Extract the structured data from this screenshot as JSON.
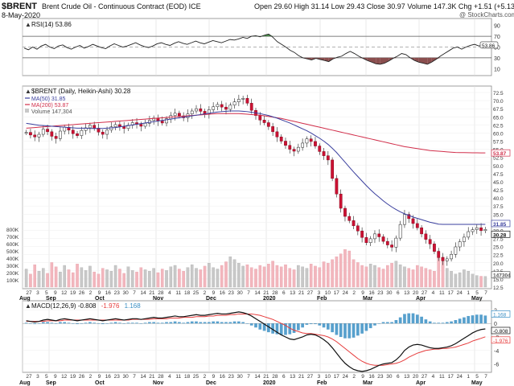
{
  "header": {
    "symbol": "$BRENT",
    "name": "Brent Crude Oil - Continuous Contract (EOD)",
    "exchange": "ICE",
    "date": "8-May-2020",
    "open_label": "Open",
    "open": "29.60",
    "high_label": "High",
    "high": "31.14",
    "low_label": "Low",
    "low": "29.43",
    "close_label": "Close",
    "close": "30.97",
    "volume_label": "Volume",
    "volume": "147.3K",
    "chg_label": "Chg",
    "chg": "+1.51 (+5.13%)",
    "chg_arrow": "▲",
    "copyright": "@ StockCharts.com"
  },
  "rsi": {
    "legend": "RSI(14) 53.86",
    "value_tag": "53.86",
    "ticks": [
      "90",
      "70",
      "50",
      "30",
      "10"
    ]
  },
  "price": {
    "legend_title": "$BRENT (Daily, Heikin-Ashi) 30.28",
    "legend_ma50": "MA(50) 31.85",
    "legend_ma200": "MA(200) 53.87",
    "legend_volume": "Volume 147,304",
    "tag_ma200": "53.87",
    "tag_ma50": "31.85",
    "tag_close": "30.28",
    "tag_volume": "147304",
    "ticks": [
      "72.5",
      "70.0",
      "67.5",
      "65.0",
      "62.5",
      "60.0",
      "57.5",
      "55.0",
      "52.5",
      "50.0",
      "47.5",
      "45.0",
      "42.5",
      "40.0",
      "37.5",
      "35.0",
      "32.5",
      "30.0",
      "27.5",
      "25.0",
      "22.5",
      "20.0",
      "17.5",
      "15.0",
      "12.5"
    ],
    "volume_ticks": [
      "800K",
      "700K",
      "600K",
      "500K",
      "400K",
      "300K",
      "200K",
      "100K"
    ]
  },
  "macd": {
    "legend_prefix": "MACD(12,26,9)",
    "legend_macd": "-0.808",
    "legend_signal": "-1.976",
    "legend_hist": "1.168",
    "tag_hist": "1.168",
    "tag_macd": "-0.808",
    "tag_signal": "-1.976",
    "ticks": [
      "2",
      "0",
      "-2",
      "-4",
      "-6"
    ]
  },
  "axis": {
    "days_top": [
      "27",
      "3",
      "5",
      "9",
      "12",
      "19",
      "26",
      "2",
      "9",
      "16",
      "23",
      "30",
      "7",
      "14",
      "21",
      "28",
      "4",
      "11",
      "18",
      "25",
      "2",
      "9",
      "16",
      "23",
      "30",
      "7",
      "14",
      "21",
      "28",
      "6",
      "13",
      "21",
      "27",
      "3",
      "10",
      "17",
      "24",
      "2",
      "9",
      "16",
      "23",
      "30",
      "6",
      "13",
      "20",
      "27",
      "4",
      "11",
      "17",
      "24",
      "1",
      "5",
      "7"
    ],
    "days_bottom": [
      "27",
      "3",
      "5",
      "9",
      "12",
      "19",
      "26",
      "2",
      "9",
      "16",
      "23",
      "30",
      "7",
      "14",
      "21",
      "28",
      "4",
      "11",
      "18",
      "25",
      "2",
      "9",
      "16",
      "23",
      "30",
      "7",
      "14",
      "21",
      "28",
      "6",
      "13",
      "21",
      "27",
      "3",
      "10",
      "17",
      "24",
      "2",
      "9",
      "16",
      "23",
      "30",
      "6",
      "13",
      "20",
      "27",
      "4",
      "11",
      "17",
      "24",
      "1",
      "5",
      "7"
    ],
    "months": [
      {
        "label": "Aug",
        "x": 24
      },
      {
        "label": "Sep",
        "x": 57
      },
      {
        "label": "Oct",
        "x": 118
      },
      {
        "label": "Nov",
        "x": 190
      },
      {
        "label": "Dec",
        "x": 256
      },
      {
        "label": "2020",
        "x": 327
      },
      {
        "label": "Feb",
        "x": 394
      },
      {
        "label": "Mar",
        "x": 451
      },
      {
        "label": "Apr",
        "x": 517
      },
      {
        "label": "May",
        "x": 586
      }
    ]
  },
  "colors": {
    "up": "#ffffff",
    "down": "#cc1133",
    "ma50": "#3a3f9e",
    "ma200": "#d12e4a",
    "vol_up": "#c8c8c8",
    "vol_down": "#f2b6bd",
    "rsi_line": "#222222",
    "rsi_fill_low": "#8a4e4e",
    "rsi_fill_high": "#4b8a4b",
    "macd_line": "#111111",
    "signal_line": "#e63c3c",
    "hist": "#3a8fc4"
  },
  "chart_data": [
    {
      "type": "line",
      "name": "RSI(14)",
      "ylim": [
        0,
        100
      ],
      "guides": [
        70,
        50,
        30
      ],
      "values": [
        48,
        45,
        50,
        46,
        52,
        55,
        50,
        47,
        52,
        54,
        49,
        46,
        50,
        53,
        48,
        51,
        55,
        52,
        49,
        47,
        52,
        56,
        53,
        50,
        52,
        55,
        58,
        54,
        51,
        49,
        52,
        56,
        58,
        55,
        53,
        57,
        60,
        57,
        55,
        58,
        61,
        58,
        56,
        59,
        62,
        60,
        58,
        61,
        64,
        63,
        65,
        68,
        66,
        70,
        71,
        69,
        72,
        74,
        68,
        60,
        55,
        50,
        44,
        40,
        34,
        30,
        28,
        26,
        29,
        27,
        25,
        23,
        28,
        31,
        33,
        38,
        42,
        38,
        33,
        29,
        25,
        22,
        19,
        18,
        20,
        24,
        29,
        33,
        38,
        36,
        30,
        25,
        22,
        20,
        18,
        22,
        27,
        33,
        38,
        43,
        48,
        50,
        46,
        50,
        53,
        55,
        52,
        54,
        53.86
      ],
      "last": 53.86
    },
    {
      "type": "candlestick",
      "name": "$BRENT (Daily, Heikin-Ashi)",
      "ylim": [
        12.5,
        73
      ],
      "close_series": [
        60.2,
        59.4,
        58.8,
        59.6,
        61.2,
        60.4,
        59.0,
        58.3,
        60.6,
        61.8,
        60.9,
        59.8,
        59.2,
        60.8,
        61.6,
        62.4,
        61.5,
        60.3,
        59.6,
        60.9,
        61.9,
        62.6,
        62.0,
        61.4,
        62.4,
        63.2,
        62.7,
        62.1,
        63.0,
        63.9,
        64.6,
        63.7,
        63.1,
        64.4,
        65.4,
        66.1,
        65.3,
        64.7,
        65.9,
        66.8,
        67.5,
        66.7,
        66.0,
        67.2,
        68.1,
        68.8,
        68.0,
        67.3,
        68.6,
        69.6,
        70.4,
        70.7,
        69.2,
        67.0,
        65.4,
        64.0,
        63.2,
        62.0,
        60.4,
        58.8,
        57.5,
        56.2,
        55.0,
        54.4,
        55.6,
        56.9,
        58.2,
        57.4,
        56.0,
        54.3,
        53.0,
        51.7,
        46.0,
        41.2,
        36.8,
        34.3,
        33.0,
        31.4,
        29.8,
        27.8,
        26.2,
        27.4,
        28.9,
        28.0,
        26.6,
        25.5,
        24.8,
        27.6,
        31.8,
        34.9,
        33.6,
        32.1,
        30.8,
        28.9,
        27.2,
        25.8,
        23.5,
        21.6,
        20.6,
        21.2,
        22.6,
        24.9,
        26.5,
        27.9,
        29.6,
        30.2,
        30.8,
        29.9,
        30.28
      ],
      "ma50": [
        63.0,
        62.8,
        62.6,
        62.4,
        62.3,
        62.2,
        62.1,
        62.0,
        61.9,
        61.8,
        61.7,
        61.6,
        61.5,
        61.5,
        61.5,
        61.4,
        61.4,
        61.4,
        61.4,
        61.5,
        61.6,
        61.7,
        61.9,
        62.1,
        62.3,
        62.5,
        62.7,
        62.9,
        63.1,
        63.3,
        63.5,
        63.7,
        63.9,
        64.1,
        64.3,
        64.5,
        64.7,
        64.9,
        65.1,
        65.3,
        65.5,
        65.7,
        65.9,
        66.1,
        66.3,
        66.5,
        66.6,
        66.7,
        66.8,
        66.8,
        66.8,
        66.7,
        66.6,
        66.4,
        66.2,
        66.0,
        65.7,
        65.4,
        65.0,
        64.6,
        64.1,
        63.6,
        63.1,
        62.5,
        61.9,
        61.3,
        60.7,
        60.0,
        59.2,
        58.4,
        57.5,
        56.5,
        55.3,
        54.0,
        52.5,
        51.0,
        49.5,
        48.0,
        46.6,
        45.2,
        43.8,
        42.5,
        41.3,
        40.2,
        39.1,
        38.1,
        37.2,
        36.4,
        35.7,
        35.1,
        34.6,
        34.1,
        33.7,
        33.3,
        32.9,
        32.5,
        32.2,
        31.9,
        31.85,
        31.85,
        31.85,
        31.85,
        31.85,
        31.85,
        31.85,
        31.85,
        31.85,
        31.85,
        31.85
      ],
      "ma200": [
        61.5,
        61.6,
        61.7,
        61.8,
        61.9,
        62.0,
        62.1,
        62.2,
        62.3,
        62.4,
        62.5,
        62.6,
        62.7,
        62.8,
        62.9,
        63.0,
        63.1,
        63.2,
        63.3,
        63.4,
        63.5,
        63.6,
        63.7,
        63.8,
        63.9,
        64.0,
        64.1,
        64.2,
        64.3,
        64.4,
        64.5,
        64.6,
        64.7,
        64.8,
        64.9,
        65.0,
        65.1,
        65.2,
        65.3,
        65.4,
        65.5,
        65.6,
        65.7,
        65.8,
        65.9,
        66.0,
        66.0,
        66.0,
        66.0,
        66.0,
        66.0,
        65.9,
        65.8,
        65.7,
        65.6,
        65.5,
        65.3,
        65.1,
        64.9,
        64.7,
        64.5,
        64.2,
        63.9,
        63.6,
        63.3,
        63.0,
        62.7,
        62.4,
        62.1,
        61.8,
        61.5,
        61.2,
        60.9,
        60.6,
        60.3,
        60.0,
        59.7,
        59.4,
        59.1,
        58.8,
        58.5,
        58.2,
        57.9,
        57.6,
        57.3,
        57.0,
        56.7,
        56.4,
        56.1,
        55.8,
        55.6,
        55.4,
        55.2,
        55.0,
        54.8,
        54.6,
        54.5,
        54.4,
        54.3,
        54.2,
        54.1,
        54.0,
        53.98,
        53.96,
        53.94,
        53.92,
        53.9,
        53.88,
        53.87
      ],
      "last_close": 30.28,
      "last_ma50": 31.85,
      "last_ma200": 53.87
    },
    {
      "type": "bar",
      "name": "Volume",
      "ylim": [
        0,
        800000
      ],
      "values": [
        250000,
        180000,
        310000,
        220000,
        260000,
        190000,
        340000,
        280000,
        210000,
        300000,
        240000,
        200000,
        320000,
        270000,
        230000,
        290000,
        210000,
        180000,
        260000,
        240000,
        220000,
        300000,
        250000,
        190000,
        280000,
        230000,
        210000,
        270000,
        240000,
        220000,
        260000,
        200000,
        250000,
        230000,
        280000,
        300000,
        250000,
        220000,
        270000,
        310000,
        260000,
        240000,
        290000,
        330000,
        270000,
        250000,
        300000,
        350000,
        420000,
        380000,
        330000,
        290000,
        310000,
        270000,
        250000,
        300000,
        280000,
        320000,
        360000,
        300000,
        280000,
        310000,
        260000,
        240000,
        300000,
        280000,
        260000,
        320000,
        290000,
        270000,
        350000,
        330000,
        380000,
        420000,
        460000,
        520000,
        500000,
        380000,
        340000,
        300000,
        280000,
        320000,
        300000,
        270000,
        250000,
        300000,
        330000,
        360000,
        310000,
        280000,
        260000,
        240000,
        300000,
        280000,
        260000,
        240000,
        220000,
        500000,
        420000,
        260000,
        220000,
        180000,
        200000,
        240000,
        220000,
        180000,
        160000,
        150000,
        147304
      ],
      "last": 147304
    },
    {
      "type": "line",
      "name": "MACD(12,26,9)",
      "ylim": [
        -7,
        3
      ],
      "macd": [
        0.4,
        0.3,
        0.2,
        0.3,
        0.5,
        0.6,
        0.5,
        0.4,
        0.6,
        0.7,
        0.6,
        0.5,
        0.4,
        0.5,
        0.6,
        0.7,
        0.6,
        0.5,
        0.4,
        0.5,
        0.6,
        0.7,
        0.6,
        0.5,
        0.6,
        0.7,
        0.7,
        0.6,
        0.7,
        0.8,
        0.9,
        0.8,
        0.8,
        0.9,
        1.0,
        1.1,
        1.0,
        1.0,
        1.1,
        1.2,
        1.3,
        1.2,
        1.2,
        1.3,
        1.4,
        1.5,
        1.4,
        1.4,
        1.5,
        1.6,
        1.7,
        1.6,
        1.4,
        1.1,
        0.7,
        0.3,
        -0.1,
        -0.5,
        -0.9,
        -1.3,
        -1.7,
        -2.0,
        -2.3,
        -2.4,
        -2.2,
        -2.0,
        -1.7,
        -1.6,
        -1.7,
        -2.0,
        -2.4,
        -2.9,
        -3.6,
        -4.4,
        -5.2,
        -5.9,
        -6.4,
        -6.8,
        -7.0,
        -7.1,
        -7.0,
        -6.8,
        -6.5,
        -6.2,
        -6.0,
        -5.9,
        -5.8,
        -5.4,
        -4.8,
        -4.0,
        -3.5,
        -3.2,
        -3.1,
        -3.2,
        -3.4,
        -3.6,
        -3.7,
        -3.7,
        -3.6,
        -3.5,
        -3.3,
        -3.0,
        -2.6,
        -2.2,
        -1.8,
        -1.4,
        -1.1,
        -0.9,
        -0.808
      ],
      "signal": [
        0.3,
        0.3,
        0.3,
        0.3,
        0.3,
        0.4,
        0.4,
        0.4,
        0.4,
        0.5,
        0.5,
        0.5,
        0.5,
        0.5,
        0.5,
        0.5,
        0.5,
        0.5,
        0.5,
        0.5,
        0.5,
        0.5,
        0.5,
        0.5,
        0.5,
        0.6,
        0.6,
        0.6,
        0.6,
        0.6,
        0.7,
        0.7,
        0.7,
        0.7,
        0.8,
        0.8,
        0.8,
        0.9,
        0.9,
        0.9,
        1.0,
        1.0,
        1.0,
        1.1,
        1.1,
        1.2,
        1.2,
        1.2,
        1.3,
        1.3,
        1.4,
        1.4,
        1.4,
        1.4,
        1.3,
        1.2,
        1.0,
        0.8,
        0.6,
        0.3,
        0.0,
        -0.3,
        -0.7,
        -1.0,
        -1.2,
        -1.4,
        -1.5,
        -1.5,
        -1.6,
        -1.7,
        -1.8,
        -2.0,
        -2.3,
        -2.7,
        -3.2,
        -3.7,
        -4.2,
        -4.7,
        -5.2,
        -5.6,
        -5.9,
        -6.1,
        -6.2,
        -6.2,
        -6.2,
        -6.1,
        -6.0,
        -5.9,
        -5.7,
        -5.4,
        -5.0,
        -4.7,
        -4.4,
        -4.2,
        -4.0,
        -3.9,
        -3.8,
        -3.8,
        -3.7,
        -3.7,
        -3.6,
        -3.5,
        -3.3,
        -3.1,
        -2.9,
        -2.6,
        -2.4,
        -2.2,
        -1.976
      ],
      "histogram": [
        0.1,
        0.0,
        -0.1,
        0.0,
        0.2,
        0.2,
        0.1,
        0.0,
        0.2,
        0.2,
        0.1,
        0.0,
        -0.1,
        0.0,
        0.1,
        0.2,
        0.1,
        0.0,
        -0.1,
        0.0,
        0.1,
        0.2,
        0.1,
        0.0,
        0.1,
        0.1,
        0.1,
        0.0,
        0.1,
        0.2,
        0.2,
        0.1,
        0.1,
        0.2,
        0.2,
        0.3,
        0.2,
        0.1,
        0.2,
        0.3,
        0.3,
        0.2,
        0.2,
        0.2,
        0.3,
        0.3,
        0.2,
        0.2,
        0.2,
        0.3,
        0.3,
        0.2,
        0.0,
        -0.3,
        -0.6,
        -0.9,
        -1.1,
        -1.3,
        -1.5,
        -1.6,
        -1.7,
        -1.7,
        -1.6,
        -1.4,
        -1.0,
        -0.6,
        -0.2,
        -0.1,
        -0.1,
        -0.3,
        -0.6,
        -0.9,
        -1.3,
        -1.7,
        -2.0,
        -2.2,
        -2.2,
        -2.1,
        -1.8,
        -1.5,
        -1.1,
        -0.7,
        -0.3,
        0.0,
        0.2,
        0.2,
        0.2,
        0.5,
        0.9,
        1.4,
        1.5,
        1.5,
        1.3,
        1.0,
        0.6,
        0.3,
        0.1,
        0.1,
        0.1,
        0.2,
        0.3,
        0.5,
        0.7,
        0.9,
        1.1,
        1.2,
        1.3,
        1.3,
        1.168
      ],
      "last_macd": -0.808,
      "last_signal": -1.976,
      "last_hist": 1.168
    }
  ]
}
